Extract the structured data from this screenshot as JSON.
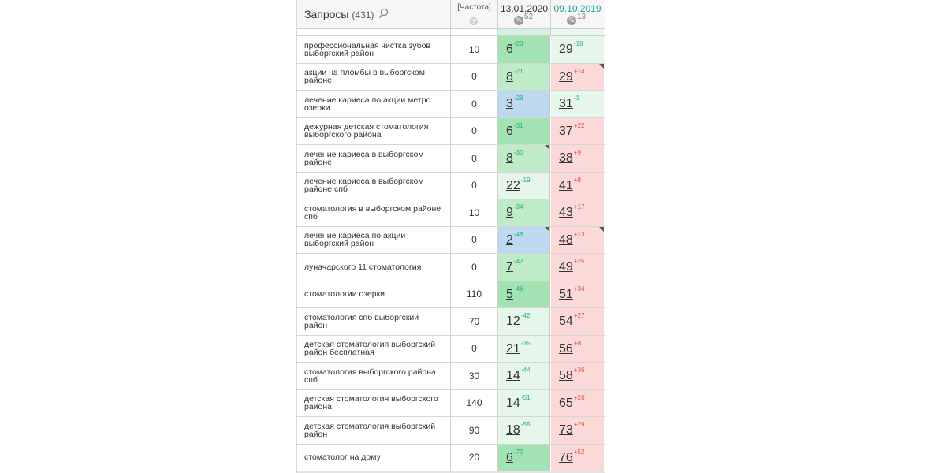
{
  "colors": {
    "dark_green": "#a3e2b3",
    "green": "#c0ebc9",
    "light_green": "#e6f6ea",
    "blue": "#bcd9ef",
    "pink": "#fbd9d9",
    "delta_green": "#22b07d",
    "delta_red": "#e0533f"
  },
  "header": {
    "title": "Запросы",
    "count": "(431)",
    "search_icon": "magnifier-icon",
    "freq_label": "[Частота]",
    "freq_icon": "globe-icon",
    "date1": "13.01.2020",
    "date1_sub": "52",
    "date2": "09.10.2019",
    "date2_sub": "13",
    "percent_icon": "%"
  },
  "rows": [
    {
      "kw": "профессиональная чистка зубов выборгский район",
      "freq": "10",
      "p1": "6",
      "d1": "-23",
      "c1": "dark_green",
      "m1": false,
      "p2": "29",
      "d2": "-18",
      "c2": "light_green",
      "m2": false
    },
    {
      "kw": "акции на пломбы в выборгском районе",
      "freq": "0",
      "p1": "8",
      "d1": "-21",
      "c1": "green",
      "m1": false,
      "p2": "29",
      "d2": "+14",
      "c2": "pink",
      "m2": true
    },
    {
      "kw": "лечение кариеса по акции метро озерки",
      "freq": "0",
      "p1": "3",
      "d1": "-28",
      "c1": "blue",
      "m1": false,
      "p2": "31",
      "d2": "-1",
      "c2": "light_green",
      "m2": false
    },
    {
      "kw": "дежурная детская стоматология выборгского района",
      "freq": "0",
      "p1": "6",
      "d1": "-31",
      "c1": "dark_green",
      "m1": false,
      "p2": "37",
      "d2": "+22",
      "c2": "pink",
      "m2": false
    },
    {
      "kw": "лечение кариеса в выборгском районе",
      "freq": "0",
      "p1": "8",
      "d1": "-30",
      "c1": "green",
      "m1": true,
      "p2": "38",
      "d2": "+9",
      "c2": "pink",
      "m2": false
    },
    {
      "kw": "лечение кариеса в выборгском районе спб",
      "freq": "0",
      "p1": "22",
      "d1": "-19",
      "c1": "light_green",
      "m1": false,
      "p2": "41",
      "d2": "+8",
      "c2": "pink",
      "m2": false
    },
    {
      "kw": "стоматология в выборгском районе спб",
      "freq": "10",
      "p1": "9",
      "d1": "-34",
      "c1": "green",
      "m1": false,
      "p2": "43",
      "d2": "+17",
      "c2": "pink",
      "m2": false
    },
    {
      "kw": "лечение кариеса по акции выборгский район",
      "freq": "0",
      "p1": "2",
      "d1": "-46",
      "c1": "blue",
      "m1": true,
      "p2": "48",
      "d2": "+13",
      "c2": "pink",
      "m2": true
    },
    {
      "kw": "луначарского 11 стоматология",
      "freq": "0",
      "p1": "7",
      "d1": "-42",
      "c1": "green",
      "m1": false,
      "p2": "49",
      "d2": "+25",
      "c2": "pink",
      "m2": false
    },
    {
      "kw": "стоматологии озерки",
      "freq": "110",
      "p1": "5",
      "d1": "-46",
      "c1": "dark_green",
      "m1": false,
      "p2": "51",
      "d2": "+34",
      "c2": "pink",
      "m2": false
    },
    {
      "kw": "стоматология спб выборгский район",
      "freq": "70",
      "p1": "12",
      "d1": "-42",
      "c1": "light_green",
      "m1": false,
      "p2": "54",
      "d2": "+27",
      "c2": "pink",
      "m2": false
    },
    {
      "kw": "детская стоматология выборгский район бесплатная",
      "freq": "0",
      "p1": "21",
      "d1": "-35",
      "c1": "light_green",
      "m1": false,
      "p2": "56",
      "d2": "+8",
      "c2": "pink",
      "m2": false
    },
    {
      "kw": "стоматология выборгского района спб",
      "freq": "30",
      "p1": "14",
      "d1": "-44",
      "c1": "light_green",
      "m1": false,
      "p2": "58",
      "d2": "+36",
      "c2": "pink",
      "m2": false
    },
    {
      "kw": "детская стоматология выборгского района",
      "freq": "140",
      "p1": "14",
      "d1": "-51",
      "c1": "light_green",
      "m1": false,
      "p2": "65",
      "d2": "+20",
      "c2": "pink",
      "m2": false
    },
    {
      "kw": "детская стоматология выборгский район",
      "freq": "90",
      "p1": "18",
      "d1": "-55",
      "c1": "light_green",
      "m1": false,
      "p2": "73",
      "d2": "+29",
      "c2": "pink",
      "m2": false
    },
    {
      "kw": "стоматолог на дому",
      "freq": "20",
      "p1": "6",
      "d1": "-70",
      "c1": "dark_green",
      "m1": false,
      "p2": "76",
      "d2": "+52",
      "c2": "pink",
      "m2": false
    }
  ]
}
